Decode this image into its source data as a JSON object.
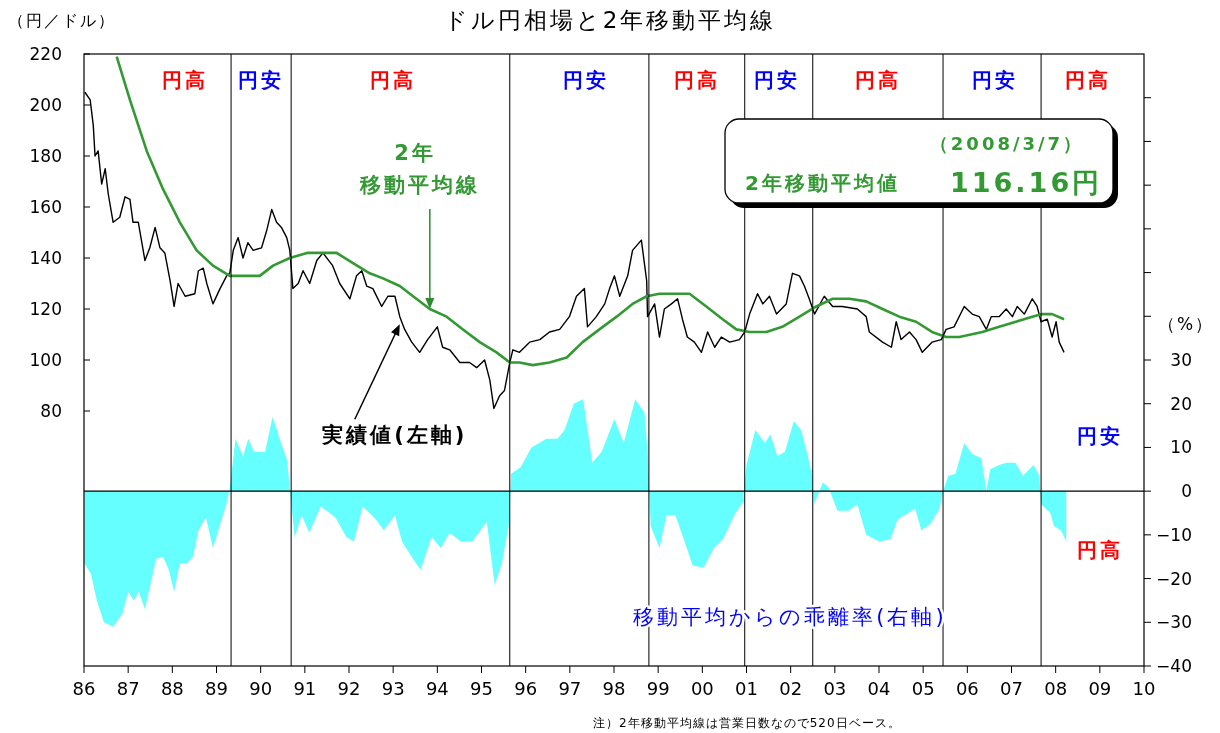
{
  "chart_data": {
    "type": "line",
    "title": "ドル円相場と2年移動平均線",
    "ylabel": "（円／ドル）",
    "y2label": "（%）",
    "xlim": [
      1986,
      2010
    ],
    "xticks": [
      {
        "value": 1986,
        "label": "86"
      },
      {
        "value": 1987,
        "label": "87"
      },
      {
        "value": 1988,
        "label": "88"
      },
      {
        "value": 1989,
        "label": "89"
      },
      {
        "value": 1990,
        "label": "90"
      },
      {
        "value": 1991,
        "label": "91"
      },
      {
        "value": 1992,
        "label": "92"
      },
      {
        "value": 1993,
        "label": "93"
      },
      {
        "value": 1994,
        "label": "94"
      },
      {
        "value": 1995,
        "label": "95"
      },
      {
        "value": 1996,
        "label": "96"
      },
      {
        "value": 1997,
        "label": "97"
      },
      {
        "value": 1998,
        "label": "98"
      },
      {
        "value": 1999,
        "label": "99"
      },
      {
        "value": 2000,
        "label": "00"
      },
      {
        "value": 2001,
        "label": "01"
      },
      {
        "value": 2002,
        "label": "02"
      },
      {
        "value": 2003,
        "label": "03"
      },
      {
        "value": 2004,
        "label": "04"
      },
      {
        "value": 2005,
        "label": "05"
      },
      {
        "value": 2006,
        "label": "06"
      },
      {
        "value": 2007,
        "label": "07"
      },
      {
        "value": 2008,
        "label": "08"
      },
      {
        "value": 2009,
        "label": "09"
      },
      {
        "value": 2010,
        "label": "10"
      }
    ],
    "ylim": [
      -20,
      220
    ],
    "yticks": [
      80,
      100,
      120,
      140,
      160,
      180,
      200,
      220
    ],
    "y2lim": [
      -40,
      100
    ],
    "y2ticks": [
      -40,
      -30,
      -20,
      -10,
      0,
      10,
      20,
      30,
      {
        "value": 40,
        "label": null
      },
      {
        "value": 50,
        "label": null
      },
      {
        "value": 60,
        "label": null
      },
      {
        "value": 70,
        "label": null
      },
      {
        "value": 80,
        "label": null
      },
      {
        "value": 90,
        "label": null
      }
    ],
    "series": [
      {
        "type": "area",
        "axis": "y2",
        "color": "#66ffff",
        "x": [
          1986.01,
          1986.16,
          1986.29,
          1986.45,
          1986.66,
          1986.87,
          1987.0,
          1987.13,
          1987.24,
          1987.38,
          1987.5,
          1987.63,
          1987.79,
          1987.92,
          1988.04,
          1988.17,
          1988.33,
          1988.47,
          1988.59,
          1988.76,
          1988.92,
          1989.1,
          1989.22,
          1989.3,
          1989.43,
          1989.6,
          1989.72,
          1989.85,
          1990.1,
          1990.27,
          1990.43,
          1990.6,
          1990.66,
          1990.77,
          1990.93,
          1991.1,
          1991.36,
          1991.69,
          1991.94,
          1992.11,
          1992.31,
          1992.61,
          1992.79,
          1993.04,
          1993.2,
          1993.45,
          1993.62,
          1993.87,
          1994.08,
          1994.28,
          1994.53,
          1994.79,
          1995.12,
          1995.3,
          1995.46,
          1995.63,
          1995.67,
          1995.89,
          1996.13,
          1996.47,
          1996.72,
          1996.88,
          1997.09,
          1997.3,
          1997.51,
          1997.72,
          1998.01,
          1998.22,
          1998.48,
          1998.69,
          1998.77,
          1998.83,
          1999.03,
          1999.19,
          1999.39,
          1999.58,
          1999.78,
          2000.03,
          2000.26,
          2000.47,
          2000.72,
          2000.92,
          2001.0,
          2001.2,
          2001.42,
          2001.54,
          2001.7,
          2001.87,
          2002.07,
          2002.24,
          2002.4,
          2002.49,
          2002.53,
          2002.73,
          2002.85,
          2003.06,
          2003.31,
          2003.51,
          2003.71,
          2004.0,
          2004.26,
          2004.42,
          2004.58,
          2004.82,
          2004.96,
          2005.16,
          2005.37,
          2005.45,
          2005.57,
          2005.73,
          2005.93,
          2006.11,
          2006.32,
          2006.43,
          2006.52,
          2006.72,
          2006.88,
          2007.09,
          2007.26,
          2007.5,
          2007.63,
          2007.67,
          2007.88,
          2007.96,
          2008.12,
          2008.24
        ],
        "values": [
          -16.5,
          -19,
          -25,
          -30,
          -31,
          -28,
          -23,
          -25,
          -23,
          -27,
          -21.5,
          -15.5,
          -15,
          -18,
          -23,
          -16.5,
          -16.5,
          -15,
          -9,
          -6,
          -13,
          -7,
          -3,
          0.5,
          12,
          8,
          12,
          9,
          9,
          17,
          12,
          7,
          0.5,
          -10.5,
          -5.5,
          -9.5,
          -3.5,
          -6,
          -10.5,
          -11.5,
          -3.5,
          -6.5,
          -9,
          -5.5,
          -11.5,
          -15.5,
          -18,
          -10.5,
          -13,
          -9.5,
          -11.5,
          -11.5,
          -7,
          -21.5,
          -16.5,
          -7,
          4,
          5.5,
          10,
          12,
          12,
          14,
          20,
          21,
          6.5,
          9,
          16.5,
          11,
          21,
          18,
          8,
          -8,
          -13,
          -5.5,
          -5.5,
          -11,
          -17,
          -17.5,
          -13,
          -11,
          -5.5,
          -2.5,
          6,
          14,
          11,
          13,
          8,
          9,
          16,
          14,
          7.5,
          3.5,
          -3,
          2,
          1,
          -4.5,
          -4.5,
          -3,
          -10,
          -11.5,
          -11,
          -6.5,
          -5.5,
          -4,
          -9,
          -7.5,
          -4,
          0,
          3.5,
          4,
          11,
          8.5,
          7.5,
          0,
          5,
          6,
          6.5,
          6.5,
          3.5,
          6,
          3.5,
          -3,
          -5,
          -8,
          -9,
          -11.5
        ]
      },
      {
        "color": "#000000",
        "x": [
          1986.02,
          1986.14,
          1986.21,
          1986.25,
          1986.32,
          1986.4,
          1986.48,
          1986.55,
          1986.66,
          1986.81,
          1986.93,
          1987.04,
          1987.11,
          1987.23,
          1987.38,
          1987.49,
          1987.61,
          1987.72,
          1987.83,
          1987.95,
          1988.04,
          1988.13,
          1988.29,
          1988.51,
          1988.59,
          1988.7,
          1988.78,
          1988.92,
          1989.08,
          1989.23,
          1989.3,
          1989.38,
          1989.49,
          1989.6,
          1989.71,
          1989.83,
          1990.02,
          1990.14,
          1990.25,
          1990.36,
          1990.47,
          1990.59,
          1990.66,
          1990.73,
          1990.85,
          1990.96,
          1991.11,
          1991.27,
          1991.41,
          1991.63,
          1991.79,
          1992.02,
          1992.17,
          1992.29,
          1992.4,
          1992.54,
          1992.74,
          1992.88,
          1993.04,
          1993.15,
          1993.26,
          1993.42,
          1993.6,
          1993.78,
          1994.0,
          1994.12,
          1994.28,
          1994.51,
          1994.73,
          1994.89,
          1995.07,
          1995.19,
          1995.28,
          1995.41,
          1995.52,
          1995.64,
          1995.71,
          1995.86,
          1996.09,
          1996.32,
          1996.54,
          1996.77,
          1996.99,
          1997.15,
          1997.33,
          1997.4,
          1997.6,
          1997.79,
          1997.9,
          1998.01,
          1998.13,
          1998.31,
          1998.42,
          1998.62,
          1998.74,
          1998.76,
          1998.92,
          1999.03,
          1999.14,
          1999.3,
          1999.44,
          1999.55,
          1999.66,
          1999.82,
          1999.98,
          2000.12,
          2000.28,
          2000.43,
          2000.62,
          2000.84,
          2000.96,
          2001.07,
          2001.25,
          2001.37,
          2001.52,
          2001.68,
          2001.9,
          2002.04,
          2002.2,
          2002.31,
          2002.42,
          2002.54,
          2002.76,
          2002.95,
          2003.17,
          2003.51,
          2003.71,
          2003.78,
          2004.08,
          2004.28,
          2004.39,
          2004.5,
          2004.69,
          2004.84,
          2004.98,
          2005.2,
          2005.41,
          2005.52,
          2005.7,
          2005.93,
          2006.11,
          2006.27,
          2006.43,
          2006.54,
          2006.72,
          2006.88,
          2007.02,
          2007.13,
          2007.29,
          2007.47,
          2007.58,
          2007.67,
          2007.81,
          2007.92,
          2008.01,
          2008.08,
          2008.19
        ],
        "values": [
          205,
          202,
          192,
          180,
          182,
          169,
          175,
          165,
          154,
          156,
          164,
          163,
          154,
          154,
          139,
          144,
          152,
          144,
          142,
          131,
          121,
          130,
          125,
          126,
          135,
          136,
          130,
          122,
          128,
          133,
          134,
          143,
          148,
          140,
          146,
          143,
          144,
          151,
          159,
          154,
          152,
          148,
          143,
          128,
          130,
          135,
          130,
          139,
          142,
          137,
          130,
          124,
          133,
          135,
          129,
          128,
          121,
          125,
          125,
          117,
          112,
          107,
          103,
          108,
          113,
          105,
          104,
          99,
          99,
          97,
          100,
          92,
          81,
          86,
          88,
          99,
          104,
          103,
          107,
          108,
          111,
          112,
          117,
          125,
          128,
          113,
          117,
          122,
          128,
          133,
          125,
          133,
          143,
          147,
          131,
          117,
          122,
          109,
          120,
          122,
          124,
          116,
          109,
          107,
          103,
          111,
          105,
          109,
          107,
          108,
          111,
          118,
          126,
          122,
          125,
          118,
          122,
          134,
          133,
          129,
          124,
          118,
          125,
          121,
          121,
          120,
          117,
          111,
          107,
          105,
          115,
          108,
          111,
          108,
          103,
          107,
          108,
          112,
          113,
          121,
          118,
          117,
          112,
          117,
          117,
          120,
          117,
          121,
          118,
          124,
          121,
          115,
          116,
          109,
          115,
          107,
          103
        ]
      },
      {
        "color": "#339933",
        "x": [
          1986.74,
          1987.04,
          1987.42,
          1987.79,
          1988.17,
          1988.55,
          1988.92,
          1989.3,
          1989.69,
          1989.98,
          1990.28,
          1990.66,
          1991.05,
          1991.41,
          1991.72,
          1992.09,
          1992.47,
          1992.77,
          1993.15,
          1993.45,
          1993.83,
          1994.21,
          1994.58,
          1994.96,
          1995.34,
          1995.64,
          1995.86,
          1996.16,
          1996.54,
          1996.93,
          1997.29,
          1997.67,
          1998.06,
          1998.42,
          1998.74,
          1999.03,
          1999.42,
          1999.71,
          2000.09,
          2000.46,
          2000.77,
          2001.07,
          2001.45,
          2001.81,
          2002.2,
          2002.58,
          2002.95,
          2003.33,
          2003.71,
          2004.08,
          2004.46,
          2004.84,
          2005.2,
          2005.52,
          2005.82,
          2006.34,
          2006.72,
          2007.1,
          2007.47,
          2007.7,
          2007.92,
          2008.19
        ],
        "values": [
          219,
          202,
          182,
          167,
          154,
          143,
          137,
          133,
          133,
          133,
          137,
          140,
          142,
          142,
          142,
          138,
          134,
          132,
          129,
          125,
          120,
          117,
          112,
          107,
          103,
          99,
          99,
          98,
          99,
          101,
          107,
          112,
          117,
          122,
          125,
          126,
          126,
          126,
          121,
          116,
          112,
          111,
          111,
          113,
          117,
          121,
          124,
          124,
          123,
          120,
          117,
          115,
          111,
          109,
          109,
          111,
          113,
          115,
          117,
          118,
          118,
          116
        ]
      }
    ],
    "ref_lines": [
      {
        "axis": "y2",
        "value": 0
      },
      {
        "axis": "x",
        "value": 1989.33
      },
      {
        "axis": "x",
        "value": 1990.69
      },
      {
        "axis": "x",
        "value": 1995.64
      },
      {
        "axis": "x",
        "value": 1998.79
      },
      {
        "axis": "x",
        "value": 2000.96
      },
      {
        "axis": "x",
        "value": 2002.5
      },
      {
        "axis": "x",
        "value": 2005.45
      },
      {
        "axis": "x",
        "value": 2007.67
      }
    ],
    "annotations": [
      "円高",
      "円安",
      "円高",
      "円安",
      "円高",
      "円安",
      "円高",
      "円安",
      "円高",
      "（2008/3/7）",
      "2年移動平均値",
      "116.16円",
      "2年",
      {
        "text": "移動平均線",
        "x": 1993.83,
        "y": 120
      },
      {
        "text": "実績値(左軸)",
        "x": 1993.15,
        "y": 114
      },
      "移動平均からの乖離率(右軸)",
      "円安",
      "円高",
      "注）2年移動平均線は営業日数なので520日ベース。"
    ]
  }
}
